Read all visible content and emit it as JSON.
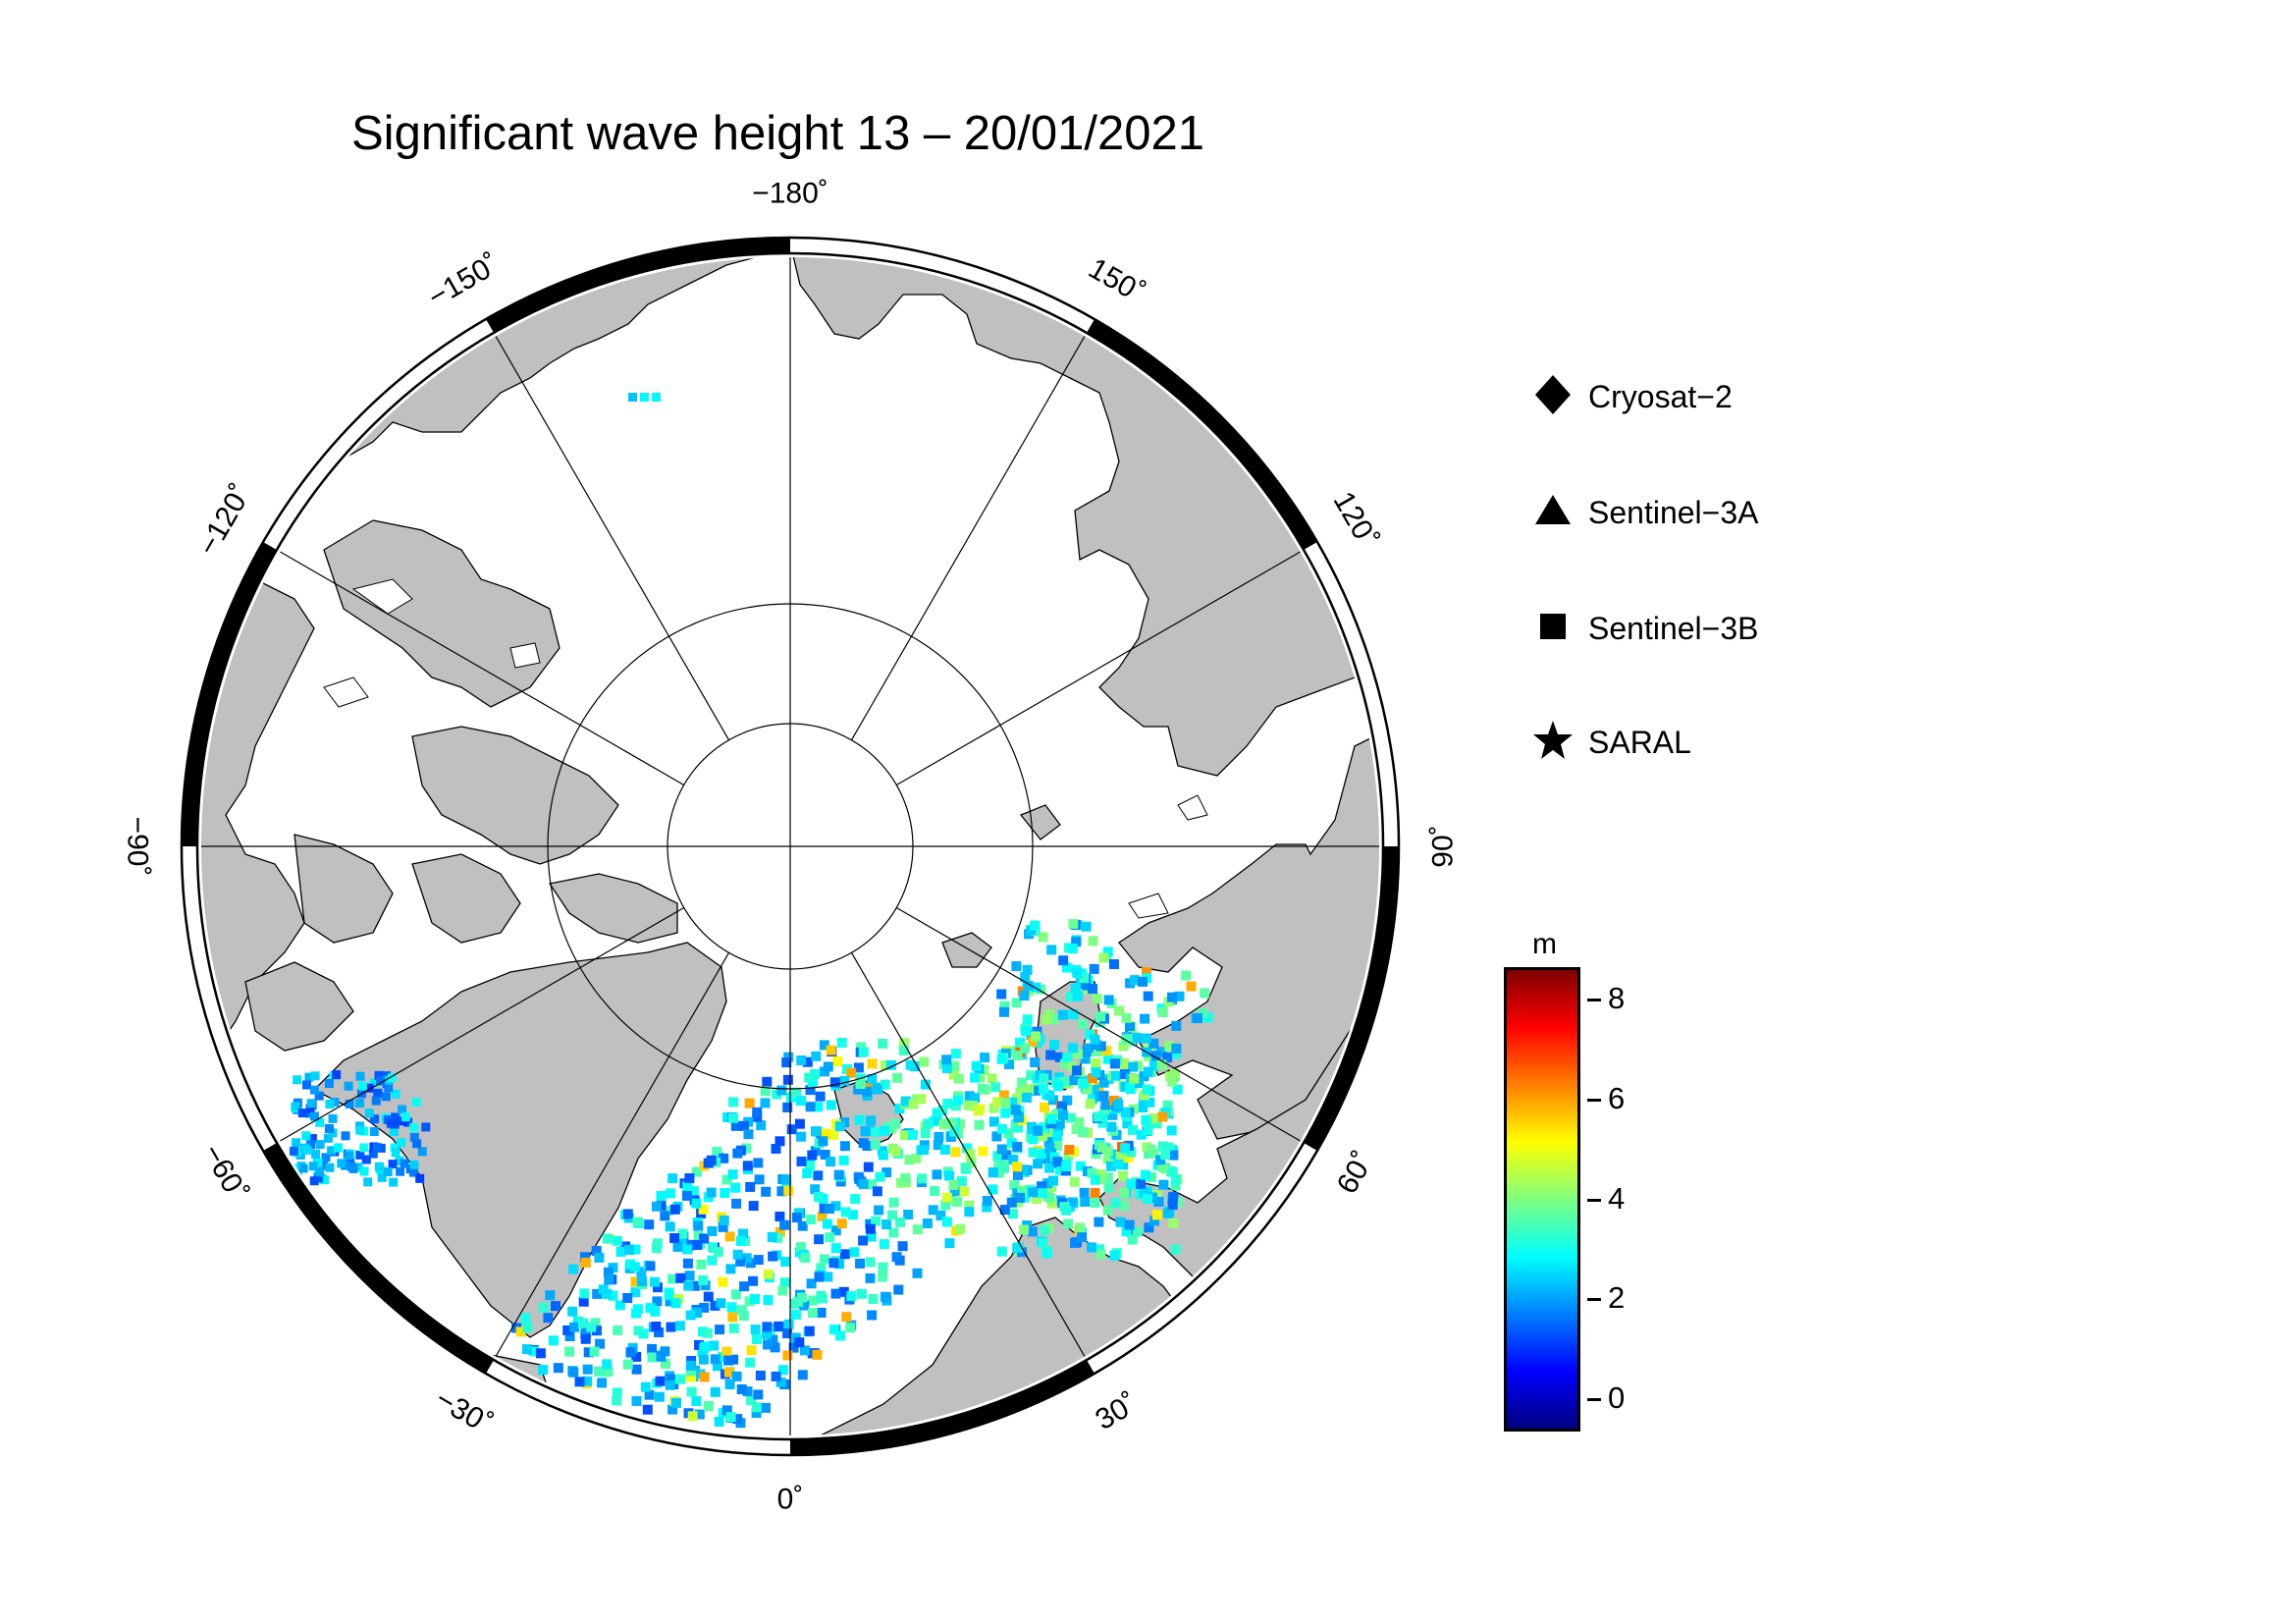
{
  "title": "Significant wave height 13 – 20/01/2021",
  "map": {
    "projection": "north polar stereographic",
    "longitude_labels": [
      "−180˚",
      "150˚",
      "120˚",
      "90˚",
      "60˚",
      "30˚",
      "0˚",
      "−30˚",
      "−60˚",
      "−90˚",
      "−120˚",
      "−150˚"
    ],
    "longitude_values": [
      180,
      150,
      120,
      90,
      60,
      30,
      0,
      -30,
      -60,
      -90,
      -120,
      -150
    ],
    "colors": {
      "land": "#c0c0c0",
      "ocean_ice": "#ffffff",
      "frame": "#000000"
    }
  },
  "legend": {
    "items": [
      {
        "symbol": "diamond-icon",
        "label": "Cryosat−2"
      },
      {
        "symbol": "triangle-icon",
        "label": "Sentinel−3A"
      },
      {
        "symbol": "square-icon",
        "label": "Sentinel−3B"
      },
      {
        "symbol": "star-icon",
        "label": "SARAL"
      }
    ]
  },
  "colorbar": {
    "unit": "m",
    "min": -0.6,
    "max": 8.6,
    "ticks": [
      "0",
      "2",
      "4",
      "6",
      "8"
    ],
    "tick_values": [
      0,
      2,
      4,
      6,
      8
    ],
    "colormap": [
      "#00007f",
      "#0000ff",
      "#007fff",
      "#00ffff",
      "#7fff7f",
      "#ffff00",
      "#ff7f00",
      "#ff0000",
      "#7f0000"
    ]
  }
}
